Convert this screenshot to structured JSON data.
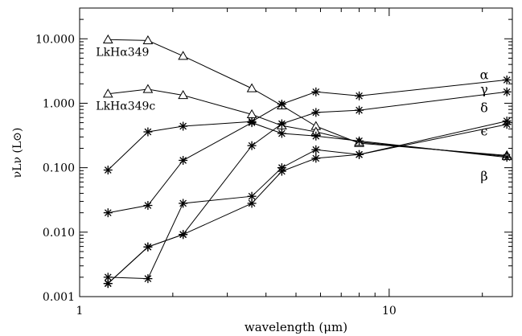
{
  "chart_data": {
    "type": "line",
    "xlabel": "wavelength (μm)",
    "ylabel": "νLν (L⊙)",
    "xscale": "log",
    "yscale": "log",
    "xlim": [
      1,
      25
    ],
    "ylim": [
      0.001,
      30
    ],
    "x": [
      1.235,
      1.662,
      2.159,
      3.6,
      4.5,
      5.8,
      8.0,
      24.0
    ],
    "x_ticks": [
      {
        "value": 1,
        "label": "1"
      },
      {
        "value": 10,
        "label": "10"
      }
    ],
    "y_ticks": [
      {
        "value": 0.001,
        "label": "0.001"
      },
      {
        "value": 0.01,
        "label": "0.010"
      },
      {
        "value": 0.1,
        "label": "0.100"
      },
      {
        "value": 1,
        "label": "1.000"
      },
      {
        "value": 10,
        "label": "10.000"
      }
    ],
    "series": [
      {
        "name": "LkHα349",
        "marker": "triangle",
        "label_side": "left",
        "values": [
          9.7,
          9.4,
          5.4,
          1.7,
          0.92,
          0.44,
          0.24,
          0.155
        ]
      },
      {
        "name": "LkHα349c",
        "marker": "triangle",
        "label_side": "left",
        "values": [
          1.4,
          1.65,
          1.33,
          0.67,
          0.45,
          0.36,
          0.25,
          0.15
        ]
      },
      {
        "name": "α",
        "marker": "asterisk",
        "label_side": "right",
        "values": [
          0.092,
          0.36,
          0.44,
          0.52,
          0.97,
          1.5,
          1.3,
          2.3
        ]
      },
      {
        "name": "γ",
        "marker": "asterisk",
        "label_side": "right",
        "values": [
          0.0016,
          0.0059,
          0.0092,
          0.22,
          0.48,
          0.72,
          0.78,
          1.5
        ]
      },
      {
        "name": "δ",
        "marker": "asterisk",
        "label_side": "right",
        "values": [
          0.002,
          0.0019,
          0.028,
          0.036,
          0.1,
          0.19,
          0.16,
          0.53
        ]
      },
      {
        "name": "ϵ",
        "marker": "asterisk",
        "label_side": "right",
        "values": [
          0.0016,
          0.0059,
          0.0092,
          0.028,
          0.088,
          0.14,
          0.16,
          0.47
        ]
      },
      {
        "name": "β",
        "marker": "asterisk",
        "label_side": "right",
        "values": [
          0.02,
          0.026,
          0.13,
          0.5,
          0.34,
          0.31,
          0.26,
          0.145
        ]
      }
    ]
  }
}
